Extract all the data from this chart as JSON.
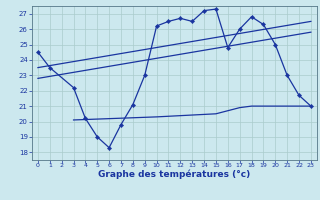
{
  "xlabel": "Graphe des températures (°c)",
  "xlim": [
    -0.5,
    23.5
  ],
  "ylim": [
    17.5,
    27.5
  ],
  "yticks": [
    18,
    19,
    20,
    21,
    22,
    23,
    24,
    25,
    26,
    27
  ],
  "xticks": [
    0,
    1,
    2,
    3,
    4,
    5,
    6,
    7,
    8,
    9,
    10,
    11,
    12,
    13,
    14,
    15,
    16,
    17,
    18,
    19,
    20,
    21,
    22,
    23
  ],
  "bg_color": "#cce8ee",
  "line_color": "#1a35a0",
  "grid_color": "#aacccc",
  "main_line": {
    "x": [
      0,
      1,
      3,
      4,
      5,
      6,
      7,
      8,
      9,
      10,
      11,
      12,
      13,
      14,
      15,
      16,
      17,
      18,
      19,
      20,
      21,
      22,
      23
    ],
    "y": [
      24.5,
      23.5,
      22.2,
      20.2,
      19.0,
      18.3,
      19.8,
      21.1,
      23.0,
      26.2,
      26.5,
      26.7,
      26.5,
      27.2,
      27.3,
      24.8,
      26.0,
      26.8,
      26.3,
      25.0,
      23.0,
      21.7,
      21.0
    ]
  },
  "trend_line1": {
    "x": [
      0,
      23
    ],
    "y": [
      23.5,
      26.5
    ]
  },
  "trend_line2": {
    "x": [
      0,
      23
    ],
    "y": [
      22.8,
      25.8
    ]
  },
  "flat_line": {
    "x": [
      3,
      10,
      15,
      16,
      17,
      18,
      19,
      20,
      23
    ],
    "y": [
      20.1,
      20.3,
      20.5,
      20.7,
      20.9,
      21.0,
      21.0,
      21.0,
      21.0
    ]
  }
}
